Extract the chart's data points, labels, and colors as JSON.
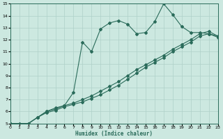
{
  "xlabel": "Humidex (Indice chaleur)",
  "xlim": [
    0,
    23
  ],
  "ylim": [
    5,
    15
  ],
  "xticks": [
    0,
    1,
    2,
    3,
    4,
    5,
    6,
    7,
    8,
    9,
    10,
    11,
    12,
    13,
    14,
    15,
    16,
    17,
    18,
    19,
    20,
    21,
    22,
    23
  ],
  "yticks": [
    5,
    6,
    7,
    8,
    9,
    10,
    11,
    12,
    13,
    14,
    15
  ],
  "bg_color": "#cce8e0",
  "grid_color": "#aed0c8",
  "line_color": "#2a6b5a",
  "line1_x": [
    0,
    1,
    2,
    3,
    4,
    5,
    6,
    7,
    8,
    9,
    10,
    11,
    12,
    13,
    14,
    15,
    16,
    17,
    18,
    19,
    20,
    21,
    22,
    23
  ],
  "line1_y": [
    5,
    5,
    5,
    5.5,
    6,
    6.3,
    6.5,
    7.6,
    11.8,
    11.0,
    12.9,
    13.4,
    13.6,
    13.3,
    12.5,
    12.6,
    13.5,
    15.0,
    14.1,
    13.1,
    12.6,
    12.6,
    12.5,
    12.3
  ],
  "line2_x": [
    0,
    2,
    3,
    4,
    5,
    6,
    7,
    8,
    9,
    10,
    11,
    12,
    13,
    14,
    15,
    16,
    17,
    18,
    19,
    20,
    21,
    22,
    23
  ],
  "line2_y": [
    5,
    5,
    5.5,
    6,
    6.2,
    6.5,
    6.7,
    7.0,
    7.3,
    7.7,
    8.1,
    8.5,
    9.0,
    9.5,
    9.9,
    10.3,
    10.7,
    11.2,
    11.6,
    12.0,
    12.5,
    12.7,
    12.3
  ],
  "line3_x": [
    0,
    2,
    3,
    4,
    5,
    6,
    7,
    8,
    9,
    10,
    11,
    12,
    13,
    14,
    15,
    16,
    17,
    18,
    19,
    20,
    21,
    22,
    23
  ],
  "line3_y": [
    5,
    5,
    5.5,
    5.9,
    6.1,
    6.4,
    6.6,
    6.8,
    7.1,
    7.4,
    7.8,
    8.2,
    8.7,
    9.2,
    9.7,
    10.1,
    10.5,
    11.0,
    11.4,
    11.8,
    12.3,
    12.5,
    12.2
  ]
}
